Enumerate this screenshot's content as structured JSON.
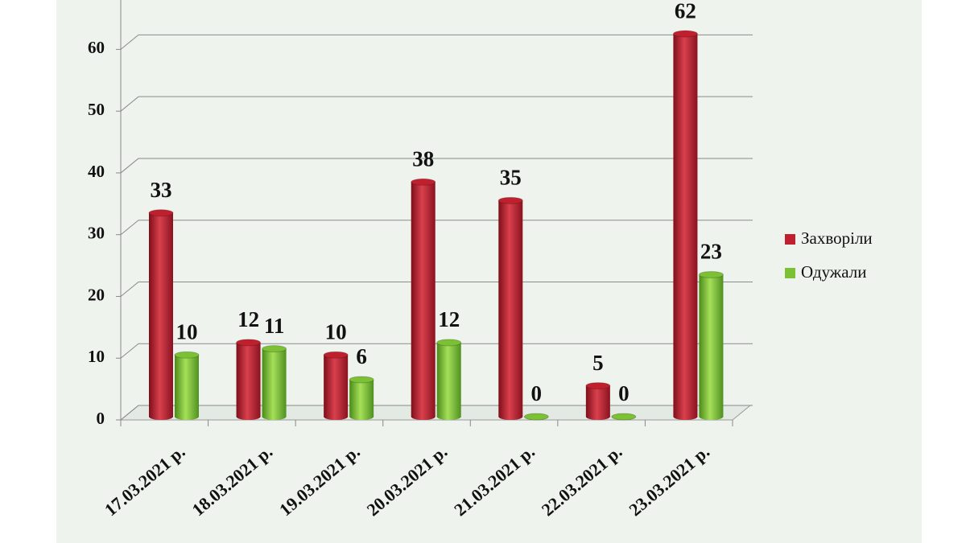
{
  "chart_data": {
    "type": "bar",
    "categories": [
      "17.03.2021 р.",
      "18.03.2021 р.",
      "19.03.2021 р.",
      "20.03.2021 р.",
      "21.03.2021 р.",
      "22.03.2021 р.",
      "23.03.2021 р."
    ],
    "series": [
      {
        "name": "Захворіли",
        "color": "#c0202e",
        "values": [
          33,
          12,
          10,
          38,
          35,
          5,
          62
        ]
      },
      {
        "name": "Одужали",
        "color": "#7cc034",
        "values": [
          10,
          11,
          6,
          12,
          0,
          0,
          23
        ]
      }
    ],
    "ylim": [
      0,
      68
    ],
    "yticks": [
      0,
      10,
      20,
      30,
      40,
      50,
      60
    ],
    "grid": true,
    "legend": "right"
  }
}
